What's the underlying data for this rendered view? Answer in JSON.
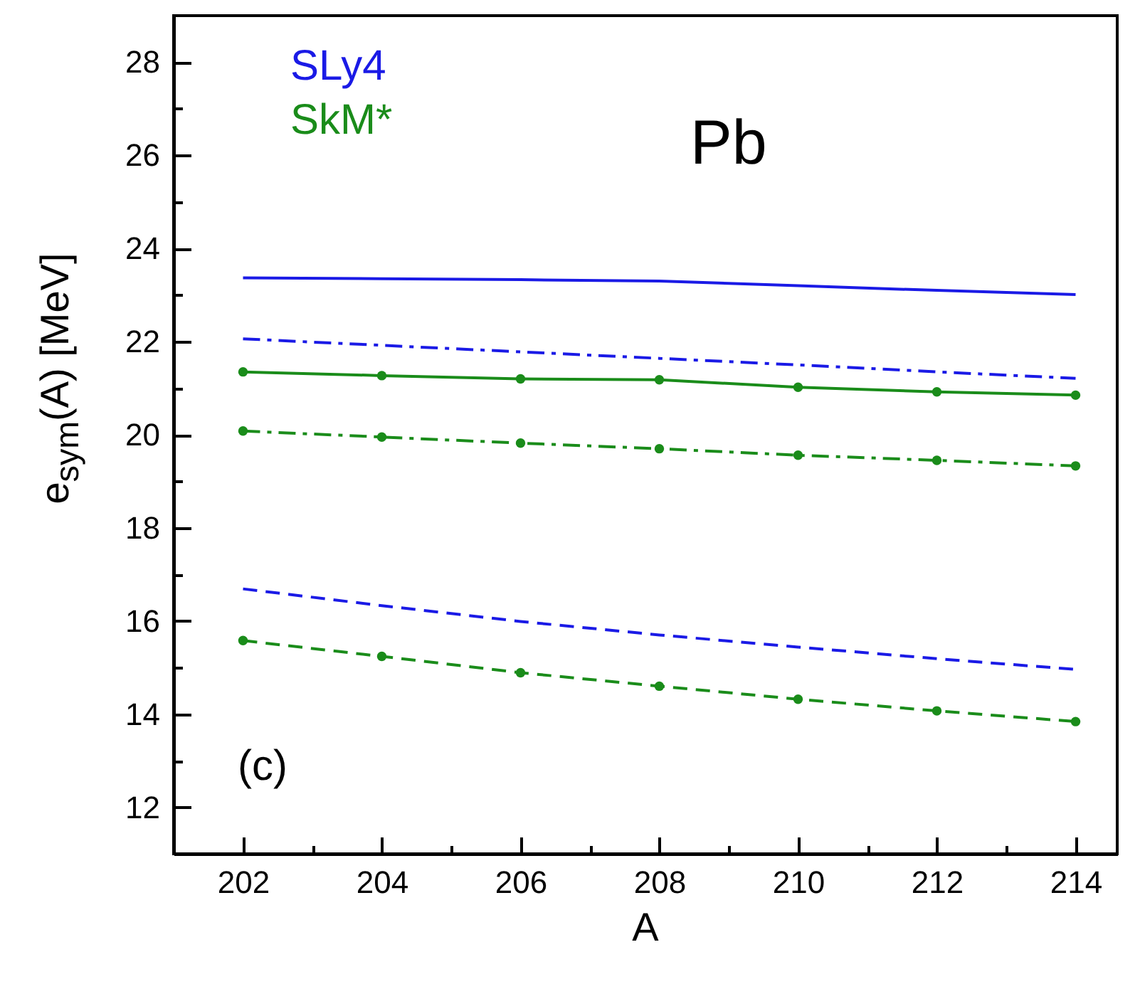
{
  "chart_data": {
    "type": "line",
    "xlabel": "A",
    "ylabel": "e$_{sym}$(A) [MeV]",
    "x": [
      202,
      204,
      206,
      208,
      210,
      212,
      214
    ],
    "xlim": [
      201,
      214.6
    ],
    "ylim": [
      11,
      29
    ],
    "xticks": [
      202,
      {
        "value": 203,
        "label": null
      },
      204,
      {
        "value": 205,
        "label": null
      },
      206,
      {
        "value": 207,
        "label": null
      },
      208,
      {
        "value": 209,
        "label": null
      },
      210,
      {
        "value": 211,
        "label": null
      },
      212,
      {
        "value": 213,
        "label": null
      },
      214
    ],
    "yticks": [
      12,
      {
        "value": 13,
        "label": null
      },
      14,
      {
        "value": 15,
        "label": null
      },
      16,
      {
        "value": 17,
        "label": null
      },
      18,
      {
        "value": 19,
        "label": null
      },
      20,
      {
        "value": 21,
        "label": null
      },
      22,
      {
        "value": 23,
        "label": null
      },
      24,
      {
        "value": 25,
        "label": null
      },
      26,
      {
        "value": 27,
        "label": null
      },
      28
    ],
    "legend": "top left",
    "grid": false,
    "series": [
      {
        "name": "SLy4",
        "color": "#1a1ae6",
        "line_style": "solid",
        "marker": "none",
        "values": [
          23.37,
          23.35,
          23.33,
          23.3,
          23.2,
          23.1,
          23.01
        ]
      },
      {
        "color": "#1a1ae6",
        "line_style": "dashdot",
        "marker": "none",
        "values": [
          22.06,
          21.92,
          21.78,
          21.64,
          21.5,
          21.35,
          21.21
        ]
      },
      {
        "color": "#1a1ae6",
        "line_style": "dashed",
        "marker": "none",
        "values": [
          16.69,
          16.33,
          15.99,
          15.7,
          15.44,
          15.19,
          14.96
        ]
      },
      {
        "name": "SkM*",
        "color": "#1a8c1a",
        "line_style": "solid",
        "marker": "circle",
        "values": [
          21.35,
          21.27,
          21.2,
          21.18,
          21.02,
          20.92,
          20.85
        ]
      },
      {
        "color": "#1a8c1a",
        "line_style": "dashdot",
        "marker": "circle",
        "values": [
          20.08,
          19.95,
          19.82,
          19.7,
          19.56,
          19.45,
          19.33
        ]
      },
      {
        "color": "#1a8c1a",
        "line_style": "dashed",
        "marker": "circle",
        "values": [
          15.58,
          15.24,
          14.89,
          14.6,
          14.32,
          14.07,
          13.84
        ]
      }
    ],
    "annotations": [
      "Pb",
      "(c)"
    ]
  }
}
